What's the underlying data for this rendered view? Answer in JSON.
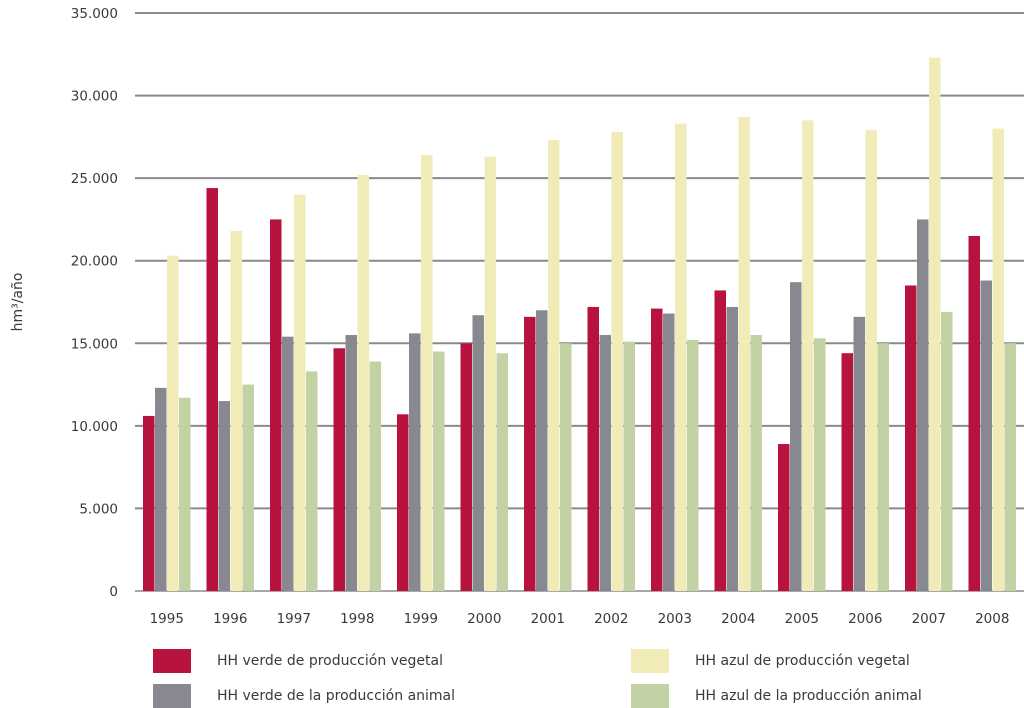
{
  "chart_data": {
    "type": "bar",
    "ylabel": "hm³/año",
    "xlabel": "",
    "ylim": [
      0,
      35000
    ],
    "yticks": [
      0,
      5000,
      10000,
      15000,
      20000,
      25000,
      30000,
      35000
    ],
    "ytick_labels": [
      "0",
      "5.000",
      "10.000",
      "15.000",
      "20.000",
      "25.000",
      "30.000",
      "35.000"
    ],
    "grid": true,
    "legend_position": "bottom",
    "categories": [
      "1995",
      "1996",
      "1997",
      "1998",
      "1999",
      "2000",
      "2001",
      "2002",
      "2003",
      "2004",
      "2005",
      "2006",
      "2007",
      "2008"
    ],
    "series": [
      {
        "name": "HH verde de producción vegetal",
        "color": "#b8123e",
        "values": [
          10600,
          24400,
          22500,
          14700,
          10700,
          15000,
          16600,
          17200,
          17100,
          18200,
          8900,
          14400,
          18500,
          21500
        ]
      },
      {
        "name": "HH verde de la producción animal",
        "color": "#878890",
        "values": [
          12300,
          11500,
          15400,
          15500,
          15600,
          16700,
          17000,
          15500,
          16800,
          17200,
          18700,
          16600,
          22500,
          18800
        ]
      },
      {
        "name": "HH azul de producción vegetal",
        "color": "#f1ebb8",
        "values": [
          20300,
          21800,
          24000,
          25200,
          26400,
          26300,
          27300,
          27800,
          28300,
          28700,
          28500,
          27900,
          32300,
          28000
        ]
      },
      {
        "name": "HH azul de la producción animal",
        "color": "#c3d2a4",
        "values": [
          11700,
          12500,
          13300,
          13900,
          14500,
          14400,
          15000,
          15100,
          15200,
          15500,
          15300,
          15000,
          16900,
          15000
        ]
      }
    ]
  }
}
